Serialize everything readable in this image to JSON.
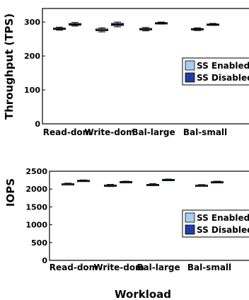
{
  "colors": {
    "ss_enabled": "#a9cdf0",
    "ss_disabled": "#1f3fa8",
    "axis": "#000000"
  },
  "chart_data": [
    {
      "type": "box",
      "ylabel": "Throughput (TPS)",
      "xlabel": "",
      "ylim": [
        0,
        340
      ],
      "yticks": [
        "0",
        "100",
        "200",
        "300"
      ],
      "categories": [
        "Read-dom",
        "Write-dom",
        "Bal-large",
        "Bal-small"
      ],
      "legend": {
        "placement": "right",
        "entries": [
          "SS Enabled",
          "SS Disabled"
        ]
      },
      "series": [
        {
          "name": "SS Enabled",
          "values": [
            280,
            277,
            279,
            279
          ],
          "low": [
            276,
            271,
            274,
            275
          ],
          "high": [
            285,
            283,
            284,
            283
          ]
        },
        {
          "name": "SS Disabled",
          "values": [
            293,
            293,
            297,
            293
          ],
          "low": [
            288,
            286,
            294,
            290
          ],
          "high": [
            299,
            300,
            300,
            296
          ]
        }
      ]
    },
    {
      "type": "box",
      "ylabel": "IOPS",
      "xlabel": "Workload",
      "ylim": [
        0,
        2500
      ],
      "yticks": [
        "0",
        "500",
        "1000",
        "1500",
        "2000",
        "2500"
      ],
      "categories": [
        "Read-dom",
        "Write-dom",
        "Bal-large",
        "Bal-small"
      ],
      "legend": {
        "placement": "right",
        "entries": [
          "SS Enabled",
          "SS Disabled"
        ]
      },
      "series": [
        {
          "name": "SS Enabled",
          "values": [
            2140,
            2100,
            2120,
            2100
          ],
          "low": [
            2115,
            2070,
            2095,
            2075
          ],
          "high": [
            2165,
            2130,
            2150,
            2125
          ]
        },
        {
          "name": "SS Disabled",
          "values": [
            2240,
            2205,
            2265,
            2200
          ],
          "low": [
            2225,
            2190,
            2250,
            2180
          ],
          "high": [
            2255,
            2220,
            2280,
            2220
          ]
        }
      ]
    }
  ]
}
